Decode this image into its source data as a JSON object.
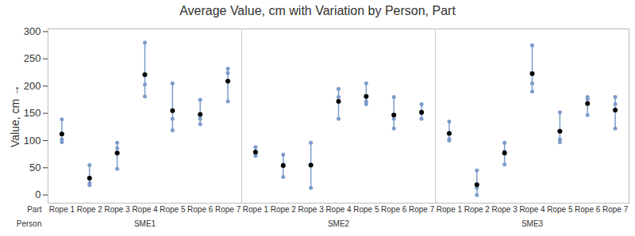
{
  "chart_data": {
    "type": "interval",
    "title": "Average Value, cm with Variation by Person, Part",
    "y_label": "Value, cm",
    "x_label": "Part",
    "group_label": "Person",
    "categories": [
      "Rope 1",
      "Rope 2",
      "Rope 3",
      "Rope 4",
      "Rope 5",
      "Rope 6",
      "Rope 7"
    ],
    "series": [
      {
        "name": "SME1",
        "color": "#7b9ccb",
        "values": [
          112,
          31,
          77,
          221,
          155,
          148,
          209
        ],
        "observations": [
          [
            139,
            102,
            97
          ],
          [
            55,
            22,
            18
          ],
          [
            96,
            86,
            48
          ],
          [
            280,
            203,
            181
          ],
          [
            205,
            140,
            119
          ],
          [
            175,
            140,
            130
          ],
          [
            232,
            224,
            172
          ]
        ]
      },
      {
        "name": "SME2",
        "color": "#7b9ccb",
        "values": [
          79,
          54,
          55,
          172,
          181,
          147,
          152
        ],
        "observations": [
          [
            88,
            77,
            72
          ],
          [
            74,
            56,
            33
          ],
          [
            96,
            55,
            13
          ],
          [
            195,
            180,
            140
          ],
          [
            205,
            172,
            167
          ],
          [
            180,
            140,
            122
          ],
          [
            167,
            150,
            140
          ]
        ]
      },
      {
        "name": "SME3",
        "color": "#7b9ccb",
        "values": [
          113,
          19,
          77,
          223,
          117,
          168,
          156
        ],
        "observations": [
          [
            135,
            103,
            100
          ],
          [
            45,
            13,
            0
          ],
          [
            96,
            80,
            56
          ],
          [
            275,
            205,
            190
          ],
          [
            152,
            102,
            97
          ],
          [
            180,
            176,
            147
          ],
          [
            180,
            167,
            122
          ]
        ]
      }
    ],
    "ylim": [
      -15,
      305
    ],
    "yticks": [
      0,
      50,
      100,
      150,
      200,
      250,
      300
    ],
    "grid": false
  }
}
